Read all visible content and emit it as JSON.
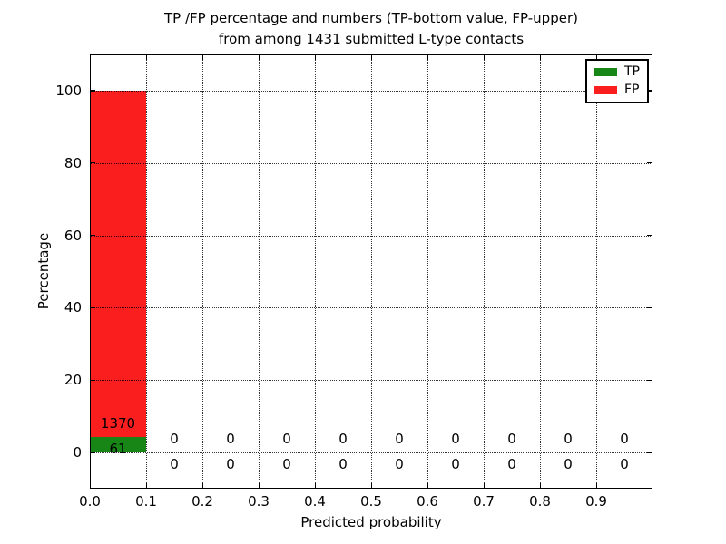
{
  "chart_data": {
    "type": "bar",
    "stacked": true,
    "title_lines": [
      "TP /FP percentage and numbers (TP-bottom value, FP-upper)",
      "from among 1431 submitted L-type contacts"
    ],
    "xlabel": "Predicted probability",
    "ylabel": "Percentage",
    "total_contacts": 1431,
    "bin_width": 0.1,
    "bin_starts": [
      0.0,
      0.1,
      0.2,
      0.3,
      0.4,
      0.5,
      0.6,
      0.7,
      0.8,
      0.9
    ],
    "series": [
      {
        "name": "TP",
        "color": "#178617",
        "counts": [
          61,
          0,
          0,
          0,
          0,
          0,
          0,
          0,
          0,
          0
        ],
        "percents": [
          4.26,
          0,
          0,
          0,
          0,
          0,
          0,
          0,
          0,
          0
        ]
      },
      {
        "name": "FP",
        "color": "#fa1e1e",
        "counts": [
          1370,
          0,
          0,
          0,
          0,
          0,
          0,
          0,
          0,
          0
        ],
        "percents": [
          95.74,
          0,
          0,
          0,
          0,
          0,
          0,
          0,
          0,
          0
        ]
      }
    ],
    "xlim": [
      0.0,
      1.0
    ],
    "ylim": [
      -10,
      110
    ],
    "xtick_values": [
      0.0,
      0.1,
      0.2,
      0.3,
      0.4,
      0.5,
      0.6,
      0.7,
      0.8,
      0.9
    ],
    "xtick_labels": [
      "0.0",
      "0.1",
      "0.2",
      "0.3",
      "0.4",
      "0.5",
      "0.6",
      "0.7",
      "0.8",
      "0.9"
    ],
    "ytick_values": [
      0,
      20,
      40,
      60,
      80,
      100
    ],
    "ytick_labels": [
      "0",
      "20",
      "40",
      "60",
      "80",
      "100"
    ],
    "grid": "dotted",
    "legend": {
      "position": "upper right",
      "entries": [
        {
          "label": "TP",
          "color": "#178617"
        },
        {
          "label": "FP",
          "color": "#fa1e1e"
        }
      ]
    }
  }
}
